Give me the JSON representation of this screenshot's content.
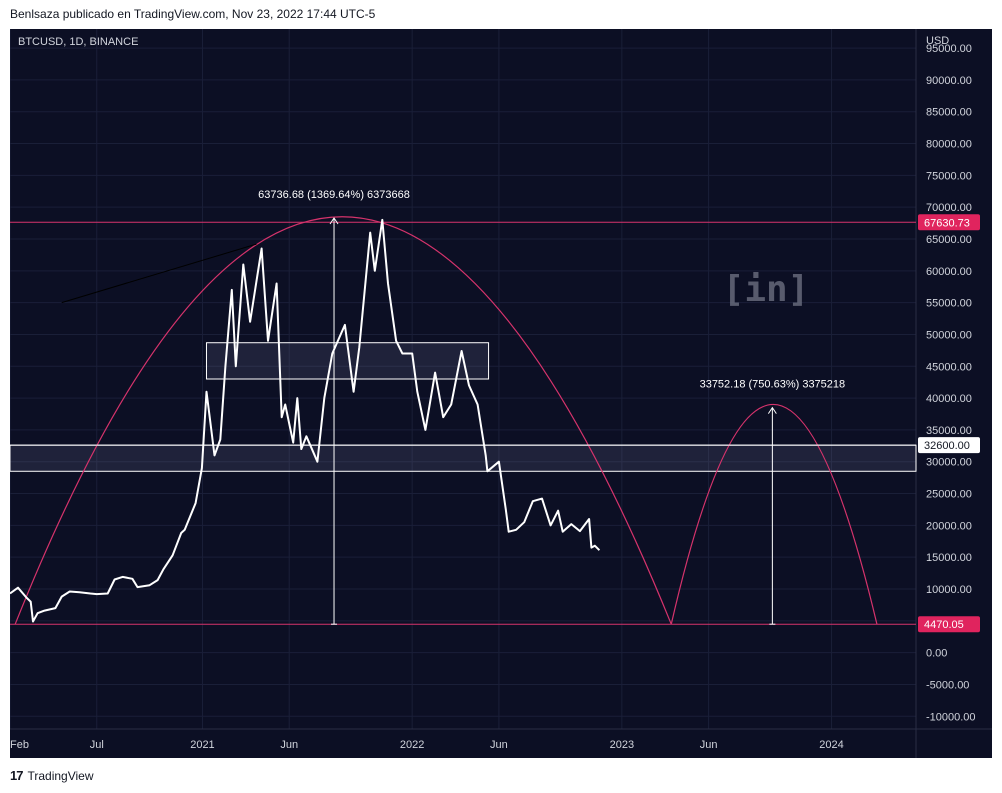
{
  "header": {
    "published_by": "Benlsaza publicado en TradingView.com, Nov 23, 2022 17:44 UTC-5",
    "symbol": "BTCUSD, 1D, BINANCE",
    "currency": "USD"
  },
  "footer": {
    "brand": "TradingView",
    "logo_glyph": "17"
  },
  "watermark": {
    "text": "[in]"
  },
  "colors": {
    "background": "#0c0f24",
    "price_line": "#ffffff",
    "arc": "#d6336c",
    "level_label_bg": "#e0245e",
    "axis_text": "#d1d4dc"
  },
  "chart_data": {
    "type": "line",
    "series": [
      {
        "name": "BTCUSD",
        "points": [
          [
            "2020-02-01",
            9300
          ],
          [
            "2020-02-15",
            10200
          ],
          [
            "2020-03-01",
            8600
          ],
          [
            "2020-03-08",
            8000
          ],
          [
            "2020-03-12",
            4900
          ],
          [
            "2020-03-20",
            6200
          ],
          [
            "2020-04-01",
            6600
          ],
          [
            "2020-04-20",
            7000
          ],
          [
            "2020-05-01",
            8800
          ],
          [
            "2020-05-15",
            9600
          ],
          [
            "2020-06-01",
            9500
          ],
          [
            "2020-06-20",
            9300
          ],
          [
            "2020-07-01",
            9200
          ],
          [
            "2020-07-20",
            9300
          ],
          [
            "2020-08-01",
            11500
          ],
          [
            "2020-08-15",
            11900
          ],
          [
            "2020-09-01",
            11600
          ],
          [
            "2020-09-10",
            10300
          ],
          [
            "2020-10-01",
            10600
          ],
          [
            "2020-10-15",
            11400
          ],
          [
            "2020-10-25",
            13100
          ],
          [
            "2020-11-10",
            15300
          ],
          [
            "2020-11-25",
            18800
          ],
          [
            "2020-12-01",
            19300
          ],
          [
            "2020-12-20",
            23500
          ],
          [
            "2020-12-31",
            29000
          ],
          [
            "2021-01-08",
            41000
          ],
          [
            "2021-01-15",
            36000
          ],
          [
            "2021-01-22",
            31000
          ],
          [
            "2021-02-01",
            33500
          ],
          [
            "2021-02-10",
            45000
          ],
          [
            "2021-02-21",
            57000
          ],
          [
            "2021-02-28",
            45000
          ],
          [
            "2021-03-13",
            61000
          ],
          [
            "2021-03-25",
            52000
          ],
          [
            "2021-04-14",
            63500
          ],
          [
            "2021-04-25",
            49000
          ],
          [
            "2021-05-10",
            58000
          ],
          [
            "2021-05-19",
            37000
          ],
          [
            "2021-05-25",
            39000
          ],
          [
            "2021-06-08",
            33000
          ],
          [
            "2021-06-15",
            40000
          ],
          [
            "2021-06-22",
            32000
          ],
          [
            "2021-07-01",
            34000
          ],
          [
            "2021-07-20",
            30000
          ],
          [
            "2021-08-01",
            40000
          ],
          [
            "2021-08-15",
            47000
          ],
          [
            "2021-09-06",
            51500
          ],
          [
            "2021-09-21",
            41000
          ],
          [
            "2021-10-01",
            48000
          ],
          [
            "2021-10-20",
            66000
          ],
          [
            "2021-10-28",
            60000
          ],
          [
            "2021-11-10",
            68000
          ],
          [
            "2021-11-20",
            58000
          ],
          [
            "2021-12-04",
            49000
          ],
          [
            "2021-12-15",
            47000
          ],
          [
            "2022-01-01",
            47000
          ],
          [
            "2022-01-10",
            41000
          ],
          [
            "2022-01-24",
            35000
          ],
          [
            "2022-02-10",
            44000
          ],
          [
            "2022-02-24",
            37000
          ],
          [
            "2022-03-10",
            39000
          ],
          [
            "2022-03-28",
            47400
          ],
          [
            "2022-04-10",
            42000
          ],
          [
            "2022-04-25",
            39000
          ],
          [
            "2022-05-09",
            31000
          ],
          [
            "2022-05-12",
            28500
          ],
          [
            "2022-06-01",
            30000
          ],
          [
            "2022-06-13",
            22500
          ],
          [
            "2022-06-18",
            19000
          ],
          [
            "2022-07-01",
            19300
          ],
          [
            "2022-07-15",
            20500
          ],
          [
            "2022-07-30",
            23800
          ],
          [
            "2022-08-15",
            24200
          ],
          [
            "2022-08-30",
            20000
          ],
          [
            "2022-09-12",
            22300
          ],
          [
            "2022-09-20",
            19000
          ],
          [
            "2022-10-05",
            20200
          ],
          [
            "2022-10-20",
            19100
          ],
          [
            "2022-11-05",
            21000
          ],
          [
            "2022-11-09",
            16500
          ],
          [
            "2022-11-15",
            16800
          ],
          [
            "2022-11-23",
            16100
          ]
        ]
      }
    ],
    "x_range": [
      "2020-02-01",
      "2024-05-27"
    ],
    "y_range": [
      -12000,
      98000
    ],
    "x_ticks": [
      {
        "date": "2020-02-01",
        "label": "Feb"
      },
      {
        "date": "2020-07-01",
        "label": "Jul"
      },
      {
        "date": "2021-01-01",
        "label": "2021"
      },
      {
        "date": "2021-06-01",
        "label": "Jun"
      },
      {
        "date": "2022-01-01",
        "label": "2022"
      },
      {
        "date": "2022-06-01",
        "label": "Jun"
      },
      {
        "date": "2023-01-01",
        "label": "2023"
      },
      {
        "date": "2023-06-01",
        "label": "Jun"
      },
      {
        "date": "2024-01-01",
        "label": "2024"
      }
    ],
    "y_ticks": [
      95000,
      90000,
      85000,
      80000,
      75000,
      70000,
      65000,
      60000,
      55000,
      50000,
      45000,
      40000,
      35000,
      30000,
      25000,
      20000,
      15000,
      10000,
      5000,
      0,
      -5000,
      -10000
    ],
    "y_tick_labels": [
      "95000.00",
      "90000.00",
      "85000.00",
      "80000.00",
      "75000.00",
      "70000.00",
      "65000.00",
      "60000.00",
      "55000.00",
      "50000.00",
      "45000.00",
      "40000.00",
      "35000.00",
      "30000.00",
      "25000.00",
      "20000.00",
      "15000.00",
      "10000.00",
      "5000.00",
      "0.00",
      "-5000.00",
      "-10000.00"
    ],
    "levels": [
      {
        "value": 67630.73,
        "label": "67630.73",
        "style": "pink"
      },
      {
        "value": 32600.0,
        "label": "32600.00",
        "style": "white"
      },
      {
        "value": 4470.05,
        "label": "4470.05",
        "style": "pink"
      }
    ],
    "zones": [
      {
        "from": "2021-01-08",
        "to": "2022-05-14",
        "low": 43000,
        "high": 48700
      },
      {
        "from": "2020-02-01",
        "to": "2024-05-27",
        "low": 28500,
        "high": 32600
      }
    ],
    "arcs": [
      {
        "start": "2020-02-10",
        "peak": "2021-08-30",
        "end": "2023-03-28",
        "base": 4470.05,
        "top": 68500
      },
      {
        "start": "2023-03-28",
        "peak": "2023-09-20",
        "end": "2024-03-20",
        "base": 4470.05,
        "top": 39000
      }
    ],
    "measurements": [
      {
        "at": "2021-08-18",
        "from": 4470.05,
        "to": 68300,
        "label": "63736.68 (1369.64%) 6373668"
      },
      {
        "at": "2023-09-20",
        "from": 4470.05,
        "to": 38500,
        "label": "33752.18 (750.63%) 3375218"
      }
    ],
    "trend_lines": [
      {
        "from": [
          "2020-05-01",
          55000
        ],
        "to": [
          "2021-04-05",
          64200
        ]
      }
    ]
  }
}
